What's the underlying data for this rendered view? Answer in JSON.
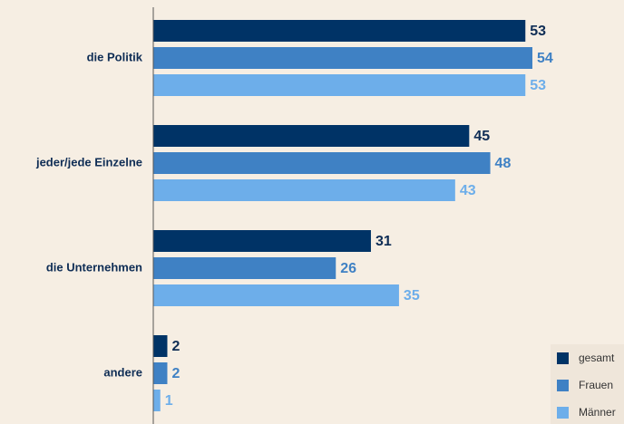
{
  "chart_data": {
    "type": "barh",
    "categories": [
      "die Politik",
      "jeder/jede Einzelne",
      "die Unternehmen",
      "andere"
    ],
    "series": [
      {
        "name": "gesamt",
        "color": "#003366",
        "values": [
          53,
          45,
          31,
          2
        ]
      },
      {
        "name": "Frauen",
        "color": "#3f81c4",
        "values": [
          54,
          48,
          26,
          2
        ]
      },
      {
        "name": "Männer",
        "color": "#6daeea",
        "values": [
          53,
          43,
          35,
          1
        ]
      }
    ],
    "legend": "lower right"
  }
}
